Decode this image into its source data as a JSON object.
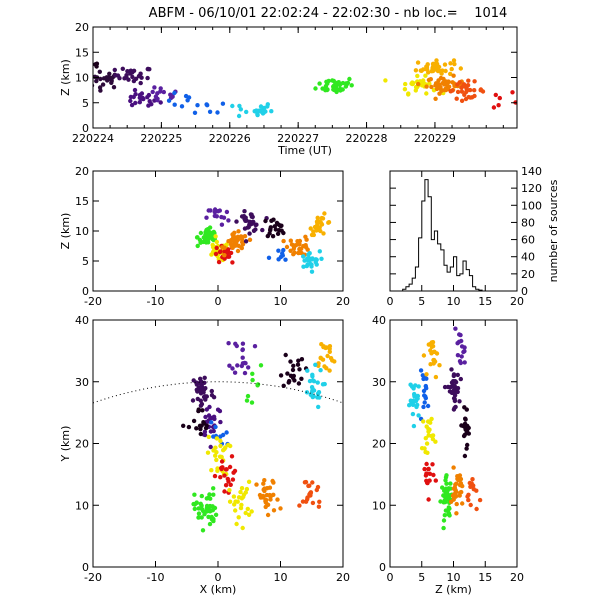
{
  "title": "ABFM - 06/10/01 22:02:24 - 22:02:30 - nb loc.=    1014",
  "chart_data": [
    {
      "id": "time-height",
      "type": "scatter",
      "xlabel": "Time (UT)",
      "ylabel": "Z (km)",
      "xlim": [
        0,
        6.2
      ],
      "ylim": [
        0,
        20
      ],
      "xticks": [
        0,
        1,
        2,
        3,
        4,
        5
      ],
      "xtick_labels": [
        "220224",
        "220225",
        "220226",
        "220227",
        "220228",
        "220229"
      ],
      "yticks": [
        0,
        5,
        10,
        15,
        20
      ],
      "clusters": [
        {
          "color": "#1a001a",
          "x": 0.0,
          "y": 12.5,
          "n": 10
        },
        {
          "color": "#2d0a3a",
          "x": 0.15,
          "y": 9.5,
          "n": 24
        },
        {
          "color": "#3d0d5c",
          "x": 0.6,
          "y": 10.5,
          "n": 26
        },
        {
          "color": "#4a1080",
          "x": 0.7,
          "y": 5.5,
          "n": 22
        },
        {
          "color": "#5a20a0",
          "x": 1.0,
          "y": 6.5,
          "n": 14
        },
        {
          "color": "#1060e8",
          "x": 1.35,
          "y": 5.2,
          "n": 8
        },
        {
          "color": "#1060e8",
          "x": 1.75,
          "y": 4.2,
          "n": 6
        },
        {
          "color": "#20d0e8",
          "x": 2.35,
          "y": 3.5,
          "n": 22
        },
        {
          "color": "#30e820",
          "x": 3.55,
          "y": 8.5,
          "n": 40
        },
        {
          "color": "#f0e800",
          "x": 4.75,
          "y": 8.5,
          "n": 30
        },
        {
          "color": "#f8b000",
          "x": 5.0,
          "y": 12.0,
          "n": 40
        },
        {
          "color": "#f08000",
          "x": 5.15,
          "y": 8.5,
          "n": 40
        },
        {
          "color": "#f05010",
          "x": 5.45,
          "y": 7.5,
          "n": 30
        },
        {
          "color": "#e01010",
          "x": 6.05,
          "y": 5.5,
          "n": 8
        }
      ]
    },
    {
      "id": "x-z",
      "type": "scatter",
      "xlabel": "",
      "ylabel": "Z (km)",
      "xlim": [
        -20,
        20
      ],
      "ylim": [
        0,
        20
      ],
      "xticks": [
        -20,
        -10,
        0,
        10,
        20
      ],
      "yticks": [
        0,
        5,
        10,
        15,
        20
      ],
      "clusters": [
        {
          "color": "#30e820",
          "x": -1.5,
          "y": 9.0,
          "n": 45
        },
        {
          "color": "#f0e800",
          "x": 0.0,
          "y": 6.5,
          "n": 30
        },
        {
          "color": "#e01010",
          "x": 1.0,
          "y": 6.0,
          "n": 20
        },
        {
          "color": "#f08000",
          "x": 3.0,
          "y": 8.0,
          "n": 40
        },
        {
          "color": "#f08000",
          "x": 13.0,
          "y": 7.5,
          "n": 30
        },
        {
          "color": "#f8b000",
          "x": 16.5,
          "y": 11.0,
          "n": 25
        },
        {
          "color": "#3d0d5c",
          "x": 5.0,
          "y": 11.5,
          "n": 30
        },
        {
          "color": "#1a001a",
          "x": 9.0,
          "y": 10.5,
          "n": 20
        },
        {
          "color": "#20d0e8",
          "x": 14.5,
          "y": 5.0,
          "n": 25
        },
        {
          "color": "#1060e8",
          "x": 10.0,
          "y": 5.5,
          "n": 8
        },
        {
          "color": "#5a20a0",
          "x": 0.0,
          "y": 12.5,
          "n": 15
        }
      ]
    },
    {
      "id": "height-histogram",
      "type": "line",
      "xlabel": "",
      "ylabel": "number of sources",
      "xlim": [
        0,
        20
      ],
      "ylim": [
        0,
        140
      ],
      "xticks": [
        0,
        5,
        10,
        15,
        20
      ],
      "yticks": [
        0,
        20,
        40,
        60,
        80,
        100,
        120,
        140
      ],
      "bin_edges": [
        0,
        0.5,
        1,
        1.5,
        2,
        2.5,
        3,
        3.5,
        4,
        4.5,
        5,
        5.5,
        6,
        6.5,
        7,
        7.5,
        8,
        8.5,
        9,
        9.5,
        10,
        10.5,
        11,
        11.5,
        12,
        12.5,
        13,
        13.5,
        14,
        14.5,
        15,
        15.5,
        16
      ],
      "counts": [
        0,
        0,
        0,
        0,
        2,
        5,
        8,
        15,
        28,
        62,
        105,
        130,
        110,
        60,
        70,
        55,
        48,
        30,
        22,
        28,
        40,
        18,
        20,
        35,
        25,
        18,
        5,
        2,
        1,
        0,
        0,
        0
      ]
    },
    {
      "id": "x-y",
      "type": "scatter",
      "xlabel": "X (km)",
      "ylabel": "Y (km)",
      "xlim": [
        -20,
        20
      ],
      "ylim": [
        0,
        40
      ],
      "xticks": [
        -20,
        -10,
        0,
        10,
        20
      ],
      "yticks": [
        0,
        10,
        20,
        30,
        40
      ],
      "clusters": [
        {
          "color": "#3d0d5c",
          "x": -2.5,
          "y": 28.5,
          "n": 40
        },
        {
          "color": "#4a1080",
          "x": -1.0,
          "y": 24.0,
          "n": 25
        },
        {
          "color": "#1a001a",
          "x": -3.0,
          "y": 22.5,
          "n": 15
        },
        {
          "color": "#1a001a",
          "x": 12.0,
          "y": 32.0,
          "n": 20
        },
        {
          "color": "#5a20a0",
          "x": 4.0,
          "y": 34.5,
          "n": 18
        },
        {
          "color": "#f8b000",
          "x": 17.0,
          "y": 34.0,
          "n": 20
        },
        {
          "color": "#20d0e8",
          "x": 15.0,
          "y": 29.0,
          "n": 25
        },
        {
          "color": "#1060e8",
          "x": 0.0,
          "y": 21.0,
          "n": 10
        },
        {
          "color": "#f0e800",
          "x": 0.0,
          "y": 18.0,
          "n": 25
        },
        {
          "color": "#30e820",
          "x": -2.0,
          "y": 9.5,
          "n": 45
        },
        {
          "color": "#e01010",
          "x": 1.5,
          "y": 14.5,
          "n": 20
        },
        {
          "color": "#f08000",
          "x": 8.0,
          "y": 11.0,
          "n": 30
        },
        {
          "color": "#f05010",
          "x": 15.0,
          "y": 12.0,
          "n": 20
        },
        {
          "color": "#f0e800",
          "x": 3.5,
          "y": 10.5,
          "n": 25
        },
        {
          "color": "#30e820",
          "x": 6.0,
          "y": 30.0,
          "n": 8
        }
      ],
      "arc": {
        "center_x": 0,
        "center_y": -30,
        "radius": 60,
        "style": "dotted"
      }
    },
    {
      "id": "z-y",
      "type": "scatter",
      "xlabel": "Z (km)",
      "ylabel": "",
      "xlim": [
        0,
        20
      ],
      "ylim": [
        0,
        40
      ],
      "xticks": [
        0,
        5,
        10,
        15,
        20
      ],
      "yticks": [
        0,
        10,
        20,
        30,
        40
      ],
      "clusters": [
        {
          "color": "#3d0d5c",
          "x": 10.0,
          "y": 28.5,
          "n": 35
        },
        {
          "color": "#1a001a",
          "x": 12.0,
          "y": 23.0,
          "n": 20
        },
        {
          "color": "#5a20a0",
          "x": 11.0,
          "y": 35.0,
          "n": 15
        },
        {
          "color": "#20d0e8",
          "x": 4.0,
          "y": 27.0,
          "n": 25
        },
        {
          "color": "#1060e8",
          "x": 5.5,
          "y": 28.5,
          "n": 15
        },
        {
          "color": "#f8b000",
          "x": 7.0,
          "y": 34.0,
          "n": 20
        },
        {
          "color": "#f0e800",
          "x": 6.0,
          "y": 22.0,
          "n": 20
        },
        {
          "color": "#30e820",
          "x": 9.0,
          "y": 11.0,
          "n": 45
        },
        {
          "color": "#e01010",
          "x": 6.0,
          "y": 14.5,
          "n": 18
        },
        {
          "color": "#f08000",
          "x": 10.5,
          "y": 12.5,
          "n": 30
        },
        {
          "color": "#f05010",
          "x": 13.0,
          "y": 12.0,
          "n": 15
        }
      ]
    }
  ]
}
